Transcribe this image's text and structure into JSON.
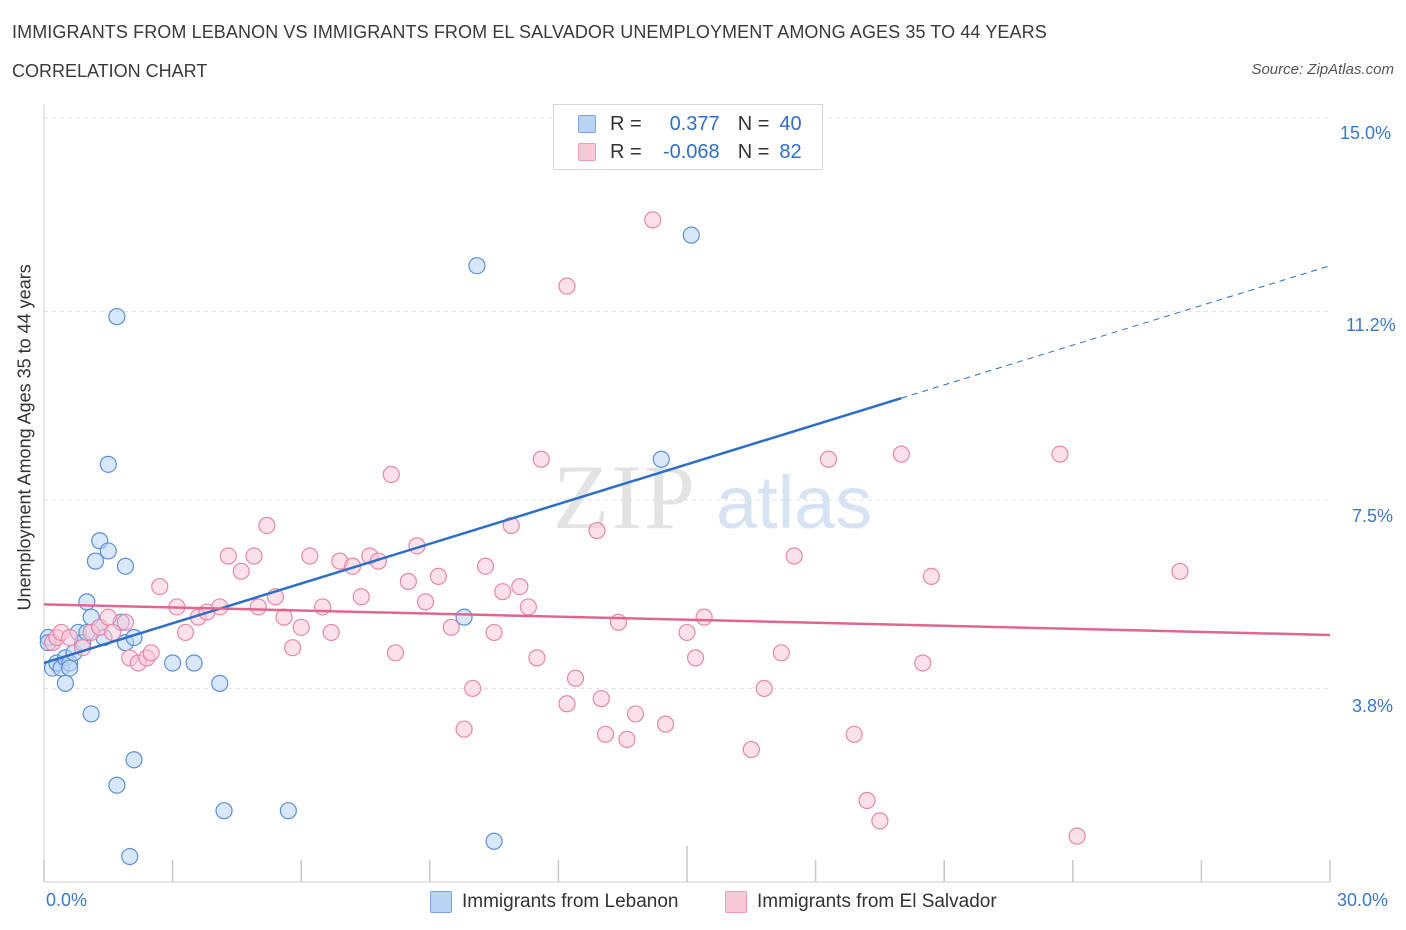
{
  "title": "IMMIGRANTS FROM LEBANON VS IMMIGRANTS FROM EL SALVADOR UNEMPLOYMENT AMONG AGES 35 TO 44 YEARS",
  "subtitle": "CORRELATION CHART",
  "source": "Source: ZipAtlas.com",
  "watermark": "ZIPatlas",
  "legend": {
    "r_label": "R =",
    "n_label": "N =",
    "rows": [
      {
        "r": "0.377",
        "n": "40",
        "fill": "#b9d3f5",
        "stroke": "#7aa7e3"
      },
      {
        "r": "-0.068",
        "n": "82",
        "fill": "#f9c9d8",
        "stroke": "#ec9ab5"
      }
    ]
  },
  "chart_data": {
    "type": "scatter",
    "xlabel": "",
    "ylabel": "Unemployment Among Ages 35 to 44 years",
    "xlim": [
      0,
      30
    ],
    "ylim": [
      0,
      15
    ],
    "x_tick_labels": [
      "0.0%",
      "30.0%"
    ],
    "y_tick_labels": [
      "3.8%",
      "7.5%",
      "11.2%",
      "15.0%"
    ],
    "y_ticks": [
      3.8,
      7.5,
      11.2,
      15.0
    ],
    "grid": true,
    "series": [
      {
        "name": "Immigrants from Lebanon",
        "color": "#5b8fd8",
        "fill": "#b9d3f5",
        "trend": {
          "x0": 0,
          "y0": 4.3,
          "x1": 20.0,
          "y1": 9.5,
          "dash_to_x": 30,
          "dash_to_y": 12.1,
          "color": "#2d6ec7"
        },
        "points": [
          [
            0.1,
            4.8
          ],
          [
            0.1,
            4.7
          ],
          [
            0.2,
            4.2
          ],
          [
            0.3,
            4.3
          ],
          [
            0.4,
            4.2
          ],
          [
            0.5,
            4.4
          ],
          [
            0.5,
            3.9
          ],
          [
            0.6,
            4.3
          ],
          [
            0.6,
            4.2
          ],
          [
            0.7,
            4.5
          ],
          [
            0.8,
            4.9
          ],
          [
            0.9,
            4.7
          ],
          [
            1.0,
            4.9
          ],
          [
            1.0,
            5.5
          ],
          [
            1.1,
            5.2
          ],
          [
            1.1,
            3.3
          ],
          [
            1.2,
            6.3
          ],
          [
            1.3,
            6.7
          ],
          [
            1.3,
            5.0
          ],
          [
            1.4,
            4.8
          ],
          [
            1.5,
            6.5
          ],
          [
            1.5,
            8.2
          ],
          [
            1.7,
            11.1
          ],
          [
            1.7,
            1.9
          ],
          [
            1.8,
            5.1
          ],
          [
            1.9,
            4.7
          ],
          [
            1.9,
            6.2
          ],
          [
            2.0,
            0.5
          ],
          [
            2.1,
            4.8
          ],
          [
            2.1,
            2.4
          ],
          [
            3.0,
            4.3
          ],
          [
            3.5,
            4.3
          ],
          [
            4.1,
            3.9
          ],
          [
            4.2,
            1.4
          ],
          [
            5.7,
            1.4
          ],
          [
            9.8,
            5.2
          ],
          [
            10.1,
            12.1
          ],
          [
            10.5,
            0.8
          ],
          [
            14.4,
            8.3
          ],
          [
            15.1,
            12.7
          ]
        ]
      },
      {
        "name": "Immigrants from El Salvador",
        "color": "#e887a6",
        "fill": "#f9c9d8",
        "trend": {
          "x0": 0,
          "y0": 5.45,
          "x1": 30,
          "y1": 4.85,
          "color": "#e06690"
        },
        "points": [
          [
            0.2,
            4.7
          ],
          [
            0.3,
            4.8
          ],
          [
            0.4,
            4.9
          ],
          [
            0.6,
            4.8
          ],
          [
            0.9,
            4.6
          ],
          [
            1.1,
            4.9
          ],
          [
            1.3,
            5.0
          ],
          [
            1.5,
            5.2
          ],
          [
            1.6,
            4.9
          ],
          [
            1.9,
            5.1
          ],
          [
            2.0,
            4.4
          ],
          [
            2.2,
            4.3
          ],
          [
            2.4,
            4.4
          ],
          [
            2.5,
            4.5
          ],
          [
            2.7,
            5.8
          ],
          [
            3.1,
            5.4
          ],
          [
            3.3,
            4.9
          ],
          [
            3.6,
            5.2
          ],
          [
            3.8,
            5.3
          ],
          [
            4.1,
            5.4
          ],
          [
            4.3,
            6.4
          ],
          [
            4.6,
            6.1
          ],
          [
            4.9,
            6.4
          ],
          [
            5.0,
            5.4
          ],
          [
            5.2,
            7.0
          ],
          [
            5.4,
            5.6
          ],
          [
            5.6,
            5.2
          ],
          [
            5.8,
            4.6
          ],
          [
            6.0,
            5.0
          ],
          [
            6.2,
            6.4
          ],
          [
            6.5,
            5.4
          ],
          [
            6.7,
            4.9
          ],
          [
            6.9,
            6.3
          ],
          [
            7.2,
            6.2
          ],
          [
            7.4,
            5.6
          ],
          [
            7.6,
            6.4
          ],
          [
            7.8,
            6.3
          ],
          [
            8.1,
            8.0
          ],
          [
            8.2,
            4.5
          ],
          [
            8.5,
            5.9
          ],
          [
            8.7,
            6.6
          ],
          [
            8.9,
            5.5
          ],
          [
            9.2,
            6.0
          ],
          [
            9.5,
            5.0
          ],
          [
            9.8,
            3.0
          ],
          [
            10.0,
            3.8
          ],
          [
            10.3,
            6.2
          ],
          [
            10.5,
            4.9
          ],
          [
            10.7,
            5.7
          ],
          [
            10.9,
            7.0
          ],
          [
            11.1,
            5.8
          ],
          [
            11.3,
            5.4
          ],
          [
            11.5,
            4.4
          ],
          [
            11.6,
            8.3
          ],
          [
            12.2,
            11.7
          ],
          [
            12.2,
            3.5
          ],
          [
            12.4,
            4.0
          ],
          [
            12.9,
            6.9
          ],
          [
            13.0,
            3.6
          ],
          [
            13.1,
            2.9
          ],
          [
            13.4,
            5.1
          ],
          [
            13.6,
            2.8
          ],
          [
            13.8,
            3.3
          ],
          [
            14.2,
            13.0
          ],
          [
            14.5,
            3.1
          ],
          [
            15.0,
            4.9
          ],
          [
            15.2,
            4.4
          ],
          [
            15.4,
            5.2
          ],
          [
            16.5,
            2.6
          ],
          [
            16.8,
            3.8
          ],
          [
            17.2,
            4.5
          ],
          [
            17.5,
            6.4
          ],
          [
            18.3,
            8.3
          ],
          [
            18.9,
            2.9
          ],
          [
            19.2,
            1.6
          ],
          [
            19.5,
            1.2
          ],
          [
            20.0,
            8.4
          ],
          [
            20.5,
            4.3
          ],
          [
            20.7,
            6.0
          ],
          [
            23.7,
            8.4
          ],
          [
            24.1,
            0.9
          ],
          [
            26.5,
            6.1
          ]
        ]
      }
    ]
  }
}
